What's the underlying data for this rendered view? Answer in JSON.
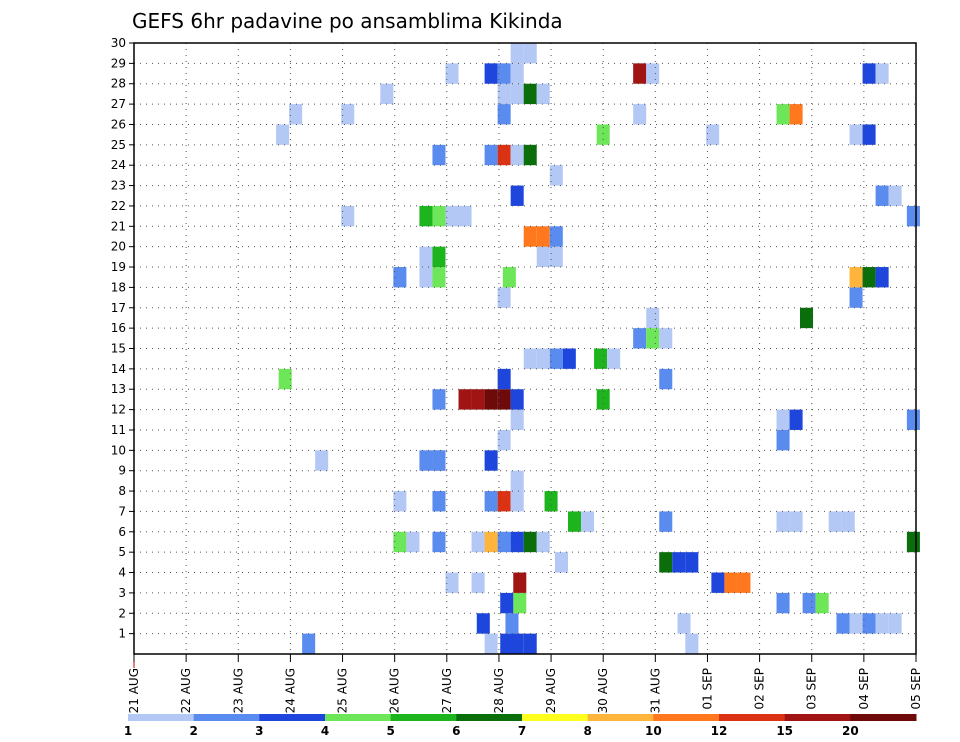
{
  "chart_data": {
    "type": "heatmap",
    "title": "GEFS 6hr padavine po ansamblima Kikinda",
    "xlabel": "",
    "ylabel": "",
    "x_ticks": [
      "21 AUG",
      "22 AUG",
      "23 AUG",
      "24 AUG",
      "25 AUG",
      "26 AUG",
      "27 AUG",
      "28 AUG",
      "29 AUG",
      "30 AUG",
      "31 AUG",
      "01 SEP",
      "02 SEP",
      "03 SEP",
      "04 SEP",
      "05 SEP"
    ],
    "y_ticks": [
      1,
      2,
      3,
      4,
      5,
      6,
      7,
      8,
      9,
      10,
      11,
      12,
      13,
      14,
      15,
      16,
      17,
      18,
      19,
      20,
      21,
      22,
      23,
      24,
      25,
      26,
      27,
      28,
      29,
      30
    ],
    "xlim_days": [
      0,
      15
    ],
    "ylim": [
      0,
      30
    ],
    "grid": true,
    "colorbar": {
      "labels": [
        "1",
        "2",
        "3",
        "4",
        "5",
        "6",
        "7",
        "8",
        "10",
        "12",
        "15",
        "20"
      ],
      "colors": [
        "#b4c8f5",
        "#5a8cf0",
        "#1e46dc",
        "#6ee65a",
        "#1eb41e",
        "#0a6e0a",
        "#ffff1e",
        "#ffb43c",
        "#ff781e",
        "#dc3214",
        "#a01414",
        "#6e0a0a"
      ]
    },
    "cells": [
      [
        7.15,
        0,
        3
      ],
      [
        6.85,
        0,
        1
      ],
      [
        6.7,
        1,
        3
      ],
      [
        7.25,
        1,
        2
      ],
      [
        10.55,
        1,
        1
      ],
      [
        13.85,
        1,
        1
      ],
      [
        13.6,
        1,
        2
      ],
      [
        14.1,
        1,
        2
      ],
      [
        14.35,
        1,
        1
      ],
      [
        14.6,
        1,
        1
      ],
      [
        7.4,
        2,
        4
      ],
      [
        7.15,
        2,
        3
      ],
      [
        12.45,
        2,
        2
      ],
      [
        12.95,
        2,
        2
      ],
      [
        13.2,
        2,
        4
      ],
      [
        6.1,
        3,
        1
      ],
      [
        6.6,
        3,
        1
      ],
      [
        7.4,
        3,
        11
      ],
      [
        11.2,
        3,
        3
      ],
      [
        11.45,
        3,
        9
      ],
      [
        11.7,
        3,
        9
      ],
      [
        8.2,
        4,
        1
      ],
      [
        10.2,
        4,
        6
      ],
      [
        10.45,
        4,
        3
      ],
      [
        10.7,
        4,
        3
      ],
      [
        5.1,
        5,
        4
      ],
      [
        5.35,
        5,
        1
      ],
      [
        5.85,
        5,
        2
      ],
      [
        6.6,
        5,
        1
      ],
      [
        6.85,
        5,
        8
      ],
      [
        7.1,
        5,
        2
      ],
      [
        7.35,
        5,
        3
      ],
      [
        7.6,
        5,
        6
      ],
      [
        7.85,
        5,
        1
      ],
      [
        14.95,
        5,
        6
      ],
      [
        8.45,
        6,
        5
      ],
      [
        8.7,
        6,
        1
      ],
      [
        10.2,
        6,
        2
      ],
      [
        12.45,
        6,
        1
      ],
      [
        12.7,
        6,
        1
      ],
      [
        13.45,
        6,
        1
      ],
      [
        13.7,
        6,
        1
      ],
      [
        5.1,
        7,
        1
      ],
      [
        5.85,
        7,
        2
      ],
      [
        6.85,
        7,
        2
      ],
      [
        7.1,
        7,
        10
      ],
      [
        7.35,
        7,
        1
      ],
      [
        7.35,
        8,
        1
      ],
      [
        8,
        7,
        5
      ],
      [
        3.6,
        9,
        1
      ],
      [
        5.6,
        9,
        2
      ],
      [
        5.85,
        9,
        2
      ],
      [
        6.85,
        9,
        3
      ],
      [
        7.1,
        10,
        1
      ],
      [
        12.45,
        10,
        2
      ],
      [
        5.85,
        9,
        2
      ],
      [
        7.35,
        11,
        1
      ],
      [
        12.45,
        11,
        1
      ],
      [
        12.7,
        11,
        3
      ],
      [
        14.95,
        11,
        2
      ],
      [
        5.85,
        12,
        2
      ],
      [
        6.35,
        12,
        11
      ],
      [
        6.6,
        12,
        11
      ],
      [
        6.85,
        12,
        12
      ],
      [
        7.1,
        12,
        12
      ],
      [
        7.35,
        12,
        3
      ],
      [
        9,
        12,
        5
      ],
      [
        2.9,
        13,
        4
      ],
      [
        7.1,
        13,
        3
      ],
      [
        10.2,
        13,
        2
      ],
      [
        7.6,
        14,
        1
      ],
      [
        7.85,
        14,
        1
      ],
      [
        8.1,
        14,
        2
      ],
      [
        8.35,
        14,
        3
      ],
      [
        8.95,
        14,
        5
      ],
      [
        9.2,
        14,
        1
      ],
      [
        9.7,
        15,
        2
      ],
      [
        9.95,
        15,
        4
      ],
      [
        10.2,
        15,
        1
      ],
      [
        12.9,
        16,
        6
      ],
      [
        9.95,
        16,
        1
      ],
      [
        7.1,
        17,
        1
      ],
      [
        13.85,
        17,
        2
      ],
      [
        5.1,
        18,
        2
      ],
      [
        5.6,
        18,
        1
      ],
      [
        5.85,
        18,
        4
      ],
      [
        7.2,
        18,
        4
      ],
      [
        13.85,
        18,
        8
      ],
      [
        14.1,
        18,
        6
      ],
      [
        14.35,
        18,
        3
      ],
      [
        5.6,
        19,
        1
      ],
      [
        5.85,
        19,
        5
      ],
      [
        7.85,
        19,
        1
      ],
      [
        8.1,
        19,
        1
      ],
      [
        7.6,
        20,
        9
      ],
      [
        7.85,
        20,
        9
      ],
      [
        8.1,
        20,
        2
      ],
      [
        4.1,
        21,
        1
      ],
      [
        5.6,
        21,
        5
      ],
      [
        5.85,
        21,
        4
      ],
      [
        6.1,
        21,
        1
      ],
      [
        6.35,
        21,
        1
      ],
      [
        14.95,
        21,
        2
      ],
      [
        7.35,
        22,
        3
      ],
      [
        14.35,
        22,
        2
      ],
      [
        14.6,
        22,
        1
      ],
      [
        8.1,
        23,
        1
      ],
      [
        5.85,
        24,
        2
      ],
      [
        6.85,
        24,
        2
      ],
      [
        7.1,
        24,
        10
      ],
      [
        7.35,
        24,
        1
      ],
      [
        7.6,
        24,
        6
      ],
      [
        2.85,
        25,
        1
      ],
      [
        9,
        25,
        4
      ],
      [
        11.1,
        25,
        1
      ],
      [
        13.85,
        25,
        1
      ],
      [
        14.1,
        25,
        3
      ],
      [
        3.1,
        26,
        1
      ],
      [
        4.1,
        26,
        1
      ],
      [
        7.1,
        26,
        2
      ],
      [
        9.7,
        26,
        1
      ],
      [
        12.45,
        26,
        4
      ],
      [
        12.7,
        26,
        9
      ],
      [
        4.85,
        27,
        1
      ],
      [
        7.1,
        27,
        1
      ],
      [
        7.35,
        27,
        1
      ],
      [
        7.6,
        27,
        6
      ],
      [
        7.85,
        27,
        1
      ],
      [
        6.1,
        28,
        1
      ],
      [
        6.85,
        28,
        3
      ],
      [
        7.1,
        28,
        2
      ],
      [
        7.35,
        28,
        1
      ],
      [
        9.7,
        28,
        11
      ],
      [
        9.95,
        28,
        1
      ],
      [
        14.1,
        28,
        3
      ],
      [
        14.35,
        28,
        1
      ],
      [
        7.35,
        29,
        1
      ],
      [
        7.6,
        29,
        1
      ],
      [
        3.35,
        0,
        2
      ],
      [
        7.35,
        0,
        3
      ],
      [
        7.6,
        0,
        3
      ],
      [
        10.7,
        0,
        1
      ]
    ]
  }
}
